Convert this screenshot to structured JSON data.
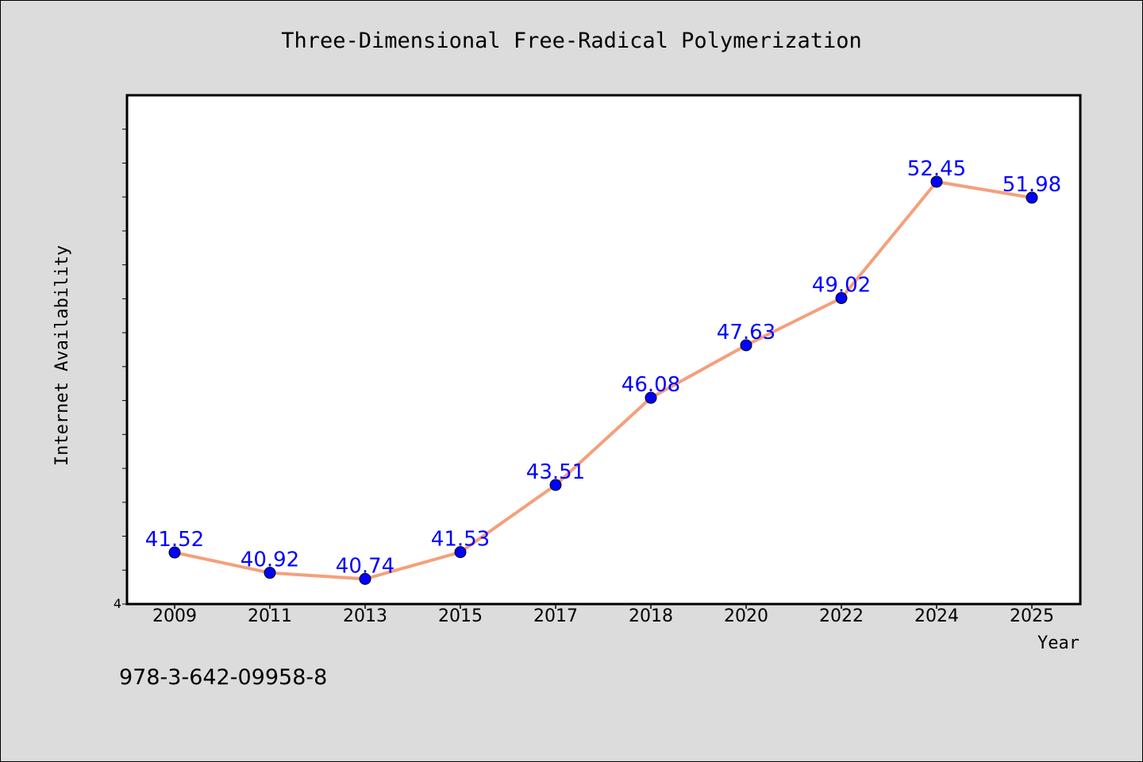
{
  "chart_data": {
    "type": "line",
    "title": "Three-Dimensional Free-Radical Polymerization",
    "xlabel": "Year",
    "ylabel": "Internet Availability",
    "categories": [
      "2009",
      "2011",
      "2013",
      "2015",
      "2017",
      "2018",
      "2020",
      "2022",
      "2024",
      "2025"
    ],
    "series": [
      {
        "name": "",
        "values": [
          41.52,
          40.92,
          40.74,
          41.53,
          43.51,
          46.08,
          47.63,
          49.02,
          52.45,
          51.98
        ],
        "labels": [
          "41.52",
          "40.92",
          "40.74",
          "41.53",
          "43.51",
          "46.08",
          "47.63",
          "49.02",
          "52.45",
          "51.98"
        ]
      }
    ],
    "ylim": [
      40.0,
      55.0
    ],
    "y_tick_labels": [
      "4"
    ],
    "grid": false,
    "colors": {
      "line": "#f4a07c",
      "marker": "#0000ff",
      "data_label": "#0000ff",
      "figure_background": "#dcdcdc",
      "plot_background": "#ffffff"
    }
  },
  "footnote": "978-3-642-09958-8"
}
